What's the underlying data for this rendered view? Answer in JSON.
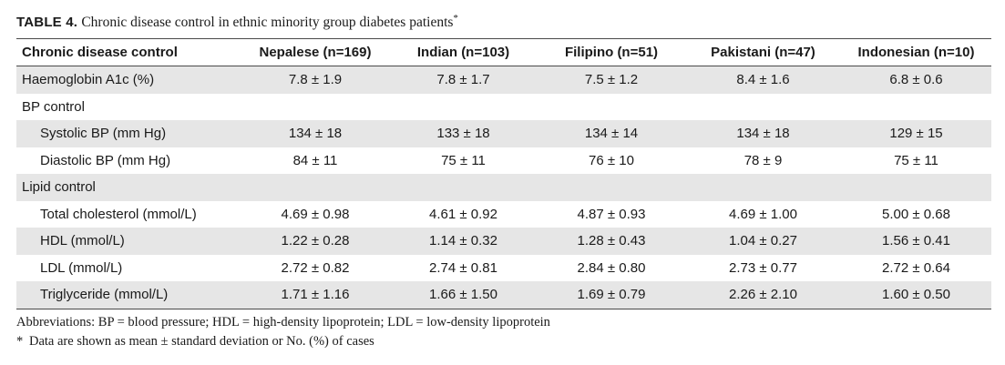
{
  "table": {
    "label": "TABLE 4.",
    "title": "Chronic disease control in ethnic minority group diabetes patients",
    "title_marker": "*",
    "columns": [
      "Chronic disease control",
      "Nepalese (n=169)",
      "Indian (n=103)",
      "Filipino (n=51)",
      "Pakistani (n=47)",
      "Indonesian (n=10)"
    ],
    "rows": [
      {
        "label": "Haemoglobin A1c (%)",
        "values": [
          "7.8 ± 1.9",
          "7.8 ± 1.7",
          "7.5 ± 1.2",
          "8.4 ± 1.6",
          "6.8 ± 0.6"
        ]
      },
      {
        "label": "BP control",
        "values": [
          "",
          "",
          "",
          "",
          ""
        ]
      },
      {
        "label": "Systolic BP (mm Hg)",
        "values": [
          "134 ± 18",
          "133 ± 18",
          "134 ± 14",
          "134 ± 18",
          "129 ± 15"
        ]
      },
      {
        "label": "Diastolic BP (mm Hg)",
        "values": [
          "84 ± 11",
          "75 ± 11",
          "76 ± 10",
          "78 ± 9",
          "75 ± 11"
        ]
      },
      {
        "label": "Lipid control",
        "values": [
          "",
          "",
          "",
          "",
          ""
        ]
      },
      {
        "label": "Total cholesterol (mmol/L)",
        "values": [
          "4.69 ± 0.98",
          "4.61 ± 0.92",
          "4.87 ± 0.93",
          "4.69 ± 1.00",
          "5.00 ± 0.68"
        ]
      },
      {
        "label": "HDL (mmol/L)",
        "values": [
          "1.22 ± 0.28",
          "1.14 ± 0.32",
          "1.28 ± 0.43",
          "1.04 ± 0.27",
          "1.56 ± 0.41"
        ]
      },
      {
        "label": "LDL (mmol/L)",
        "values": [
          "2.72 ± 0.82",
          "2.74 ± 0.81",
          "2.84 ± 0.80",
          "2.73 ± 0.77",
          "2.72 ± 0.64"
        ]
      },
      {
        "label": "Triglyceride (mmol/L)",
        "values": [
          "1.71 ± 1.16",
          "1.66 ± 1.50",
          "1.69 ± 0.79",
          "2.26 ± 2.10",
          "1.60 ± 0.50"
        ]
      }
    ]
  },
  "footnotes": {
    "abbreviations": "Abbreviations: BP = blood pressure; HDL = high-density lipoprotein; LDL = low-density lipoprotein",
    "star_marker": "*",
    "star_text": "Data are shown as mean ± standard deviation or No. (%) of cases"
  },
  "colors": {
    "row_shade": "#e6e6e6",
    "rule": "#4a4a4a",
    "text": "#1a1a1a"
  }
}
